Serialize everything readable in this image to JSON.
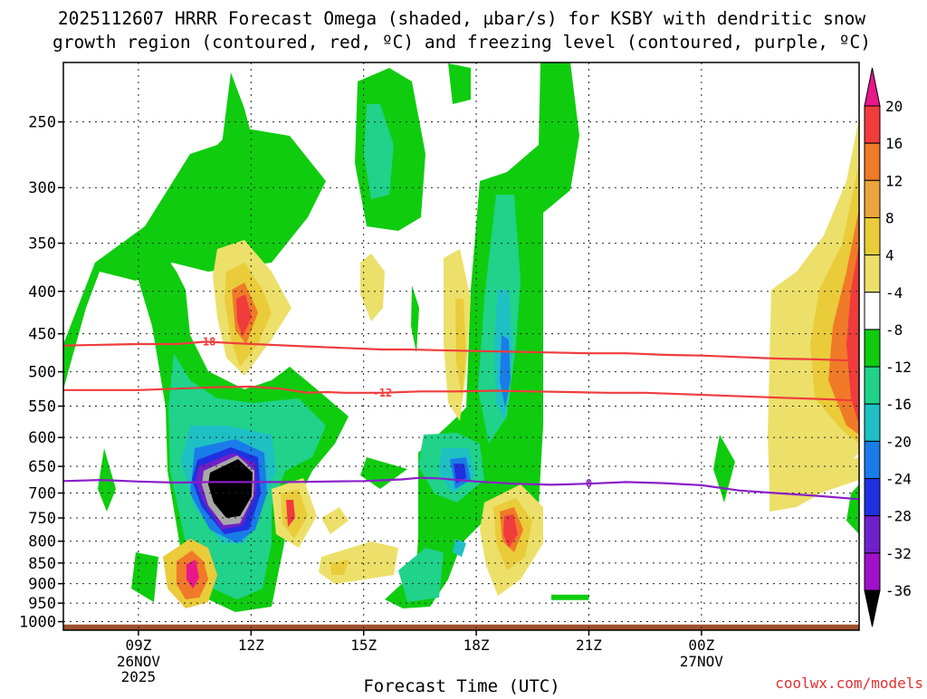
{
  "chart_data": {
    "type": "heatmap",
    "title_line1": "2025112607 HRRR Forecast Omega (shaded, µbar/s) for KSBY with dendritic snow",
    "title_line2": "growth region (contoured, red, ºC) and freezing level (contoured, purple, ºC)",
    "xlabel": "Forecast Time (UTC)",
    "ylabel": "",
    "credit": "coolwx.com/models",
    "x_range_hours": [
      7,
      28.2
    ],
    "y_range_hpa": [
      212,
      1024
    ],
    "x_ticks": [
      {
        "hour": 9,
        "label": "09Z",
        "date": "26NOV",
        "year": "2025"
      },
      {
        "hour": 12,
        "label": "12Z",
        "date": "",
        "year": ""
      },
      {
        "hour": 15,
        "label": "15Z",
        "date": "",
        "year": ""
      },
      {
        "hour": 18,
        "label": "18Z",
        "date": "",
        "year": ""
      },
      {
        "hour": 21,
        "label": "21Z",
        "date": "",
        "year": ""
      },
      {
        "hour": 24,
        "label": "00Z",
        "date": "27NOV",
        "year": ""
      }
    ],
    "y_ticks": [
      250,
      300,
      350,
      400,
      450,
      500,
      550,
      600,
      650,
      700,
      750,
      800,
      850,
      900,
      950,
      1000
    ],
    "colorbar": {
      "labels": [
        "20",
        "16",
        "12",
        "8",
        "4",
        "-4",
        "-8",
        "-12",
        "-16",
        "-20",
        "-24",
        "-28",
        "-32",
        "-36"
      ],
      "colors": [
        "#e8178a",
        "#f03c3c",
        "#f07a28",
        "#eba53a",
        "#eacb3a",
        "#ece06a",
        "#ffffff",
        "#0fcc0f",
        "#20d28a",
        "#1ec0c4",
        "#1a7ce8",
        "#2030e0",
        "#7020c8",
        "#a010c8",
        "#a8a8a8",
        "#000000"
      ]
    },
    "contours": [
      {
        "name": "dendritic-snow-upper",
        "label": "-18",
        "color": "#f03c3c",
        "points": [
          [
            7,
            465
          ],
          [
            8,
            464
          ],
          [
            9,
            463
          ],
          [
            10,
            463
          ],
          [
            10.8,
            460
          ],
          [
            11.6,
            462
          ],
          [
            12.5,
            464
          ],
          [
            13.5,
            466
          ],
          [
            14.5,
            468
          ],
          [
            15.5,
            470
          ],
          [
            16.2,
            470
          ],
          [
            17,
            471
          ],
          [
            18,
            472
          ],
          [
            19,
            473
          ],
          [
            20,
            474
          ],
          [
            21,
            475
          ],
          [
            22,
            475
          ],
          [
            23,
            477
          ],
          [
            24,
            478
          ],
          [
            25,
            480
          ],
          [
            26,
            482
          ],
          [
            27,
            483
          ],
          [
            28.2,
            485
          ]
        ]
      },
      {
        "name": "dendritic-snow-lower",
        "label": "-12",
        "color": "#f03c3c",
        "points": [
          [
            7,
            526
          ],
          [
            8,
            526
          ],
          [
            9,
            526
          ],
          [
            10,
            524
          ],
          [
            11,
            522
          ],
          [
            12,
            521
          ],
          [
            12.8,
            524
          ],
          [
            13.5,
            530
          ],
          [
            14,
            529
          ],
          [
            14.5,
            530
          ],
          [
            15.5,
            530
          ],
          [
            16.5,
            528
          ],
          [
            17.5,
            528
          ],
          [
            18.5,
            527
          ],
          [
            19.5,
            528
          ],
          [
            20.5,
            529
          ],
          [
            21.5,
            530
          ],
          [
            22.5,
            530
          ],
          [
            23.5,
            532
          ],
          [
            24.5,
            534
          ],
          [
            25.5,
            536
          ],
          [
            26.5,
            538
          ],
          [
            27.5,
            540
          ],
          [
            28.2,
            542
          ]
        ]
      },
      {
        "name": "freezing-level",
        "label": "0",
        "color": "#8a1ec8",
        "points": [
          [
            7,
            677
          ],
          [
            8,
            675
          ],
          [
            9,
            678
          ],
          [
            10,
            680
          ],
          [
            11,
            679
          ],
          [
            12,
            679
          ],
          [
            13,
            679
          ],
          [
            14,
            678
          ],
          [
            15,
            677
          ],
          [
            16,
            674
          ],
          [
            16.5,
            671
          ],
          [
            17,
            672
          ],
          [
            18,
            678
          ],
          [
            19,
            682
          ],
          [
            20,
            684
          ],
          [
            21,
            682
          ],
          [
            22,
            679
          ],
          [
            23,
            681
          ],
          [
            24,
            685
          ],
          [
            25,
            695
          ],
          [
            26,
            700
          ],
          [
            27,
            705
          ],
          [
            28.2,
            712
          ]
        ]
      }
    ],
    "ground_level_hpa": 1008,
    "horizontal_segment": {
      "hours": [
        20,
        21
      ],
      "hpa": 935,
      "color": "#0fcc0f"
    }
  }
}
